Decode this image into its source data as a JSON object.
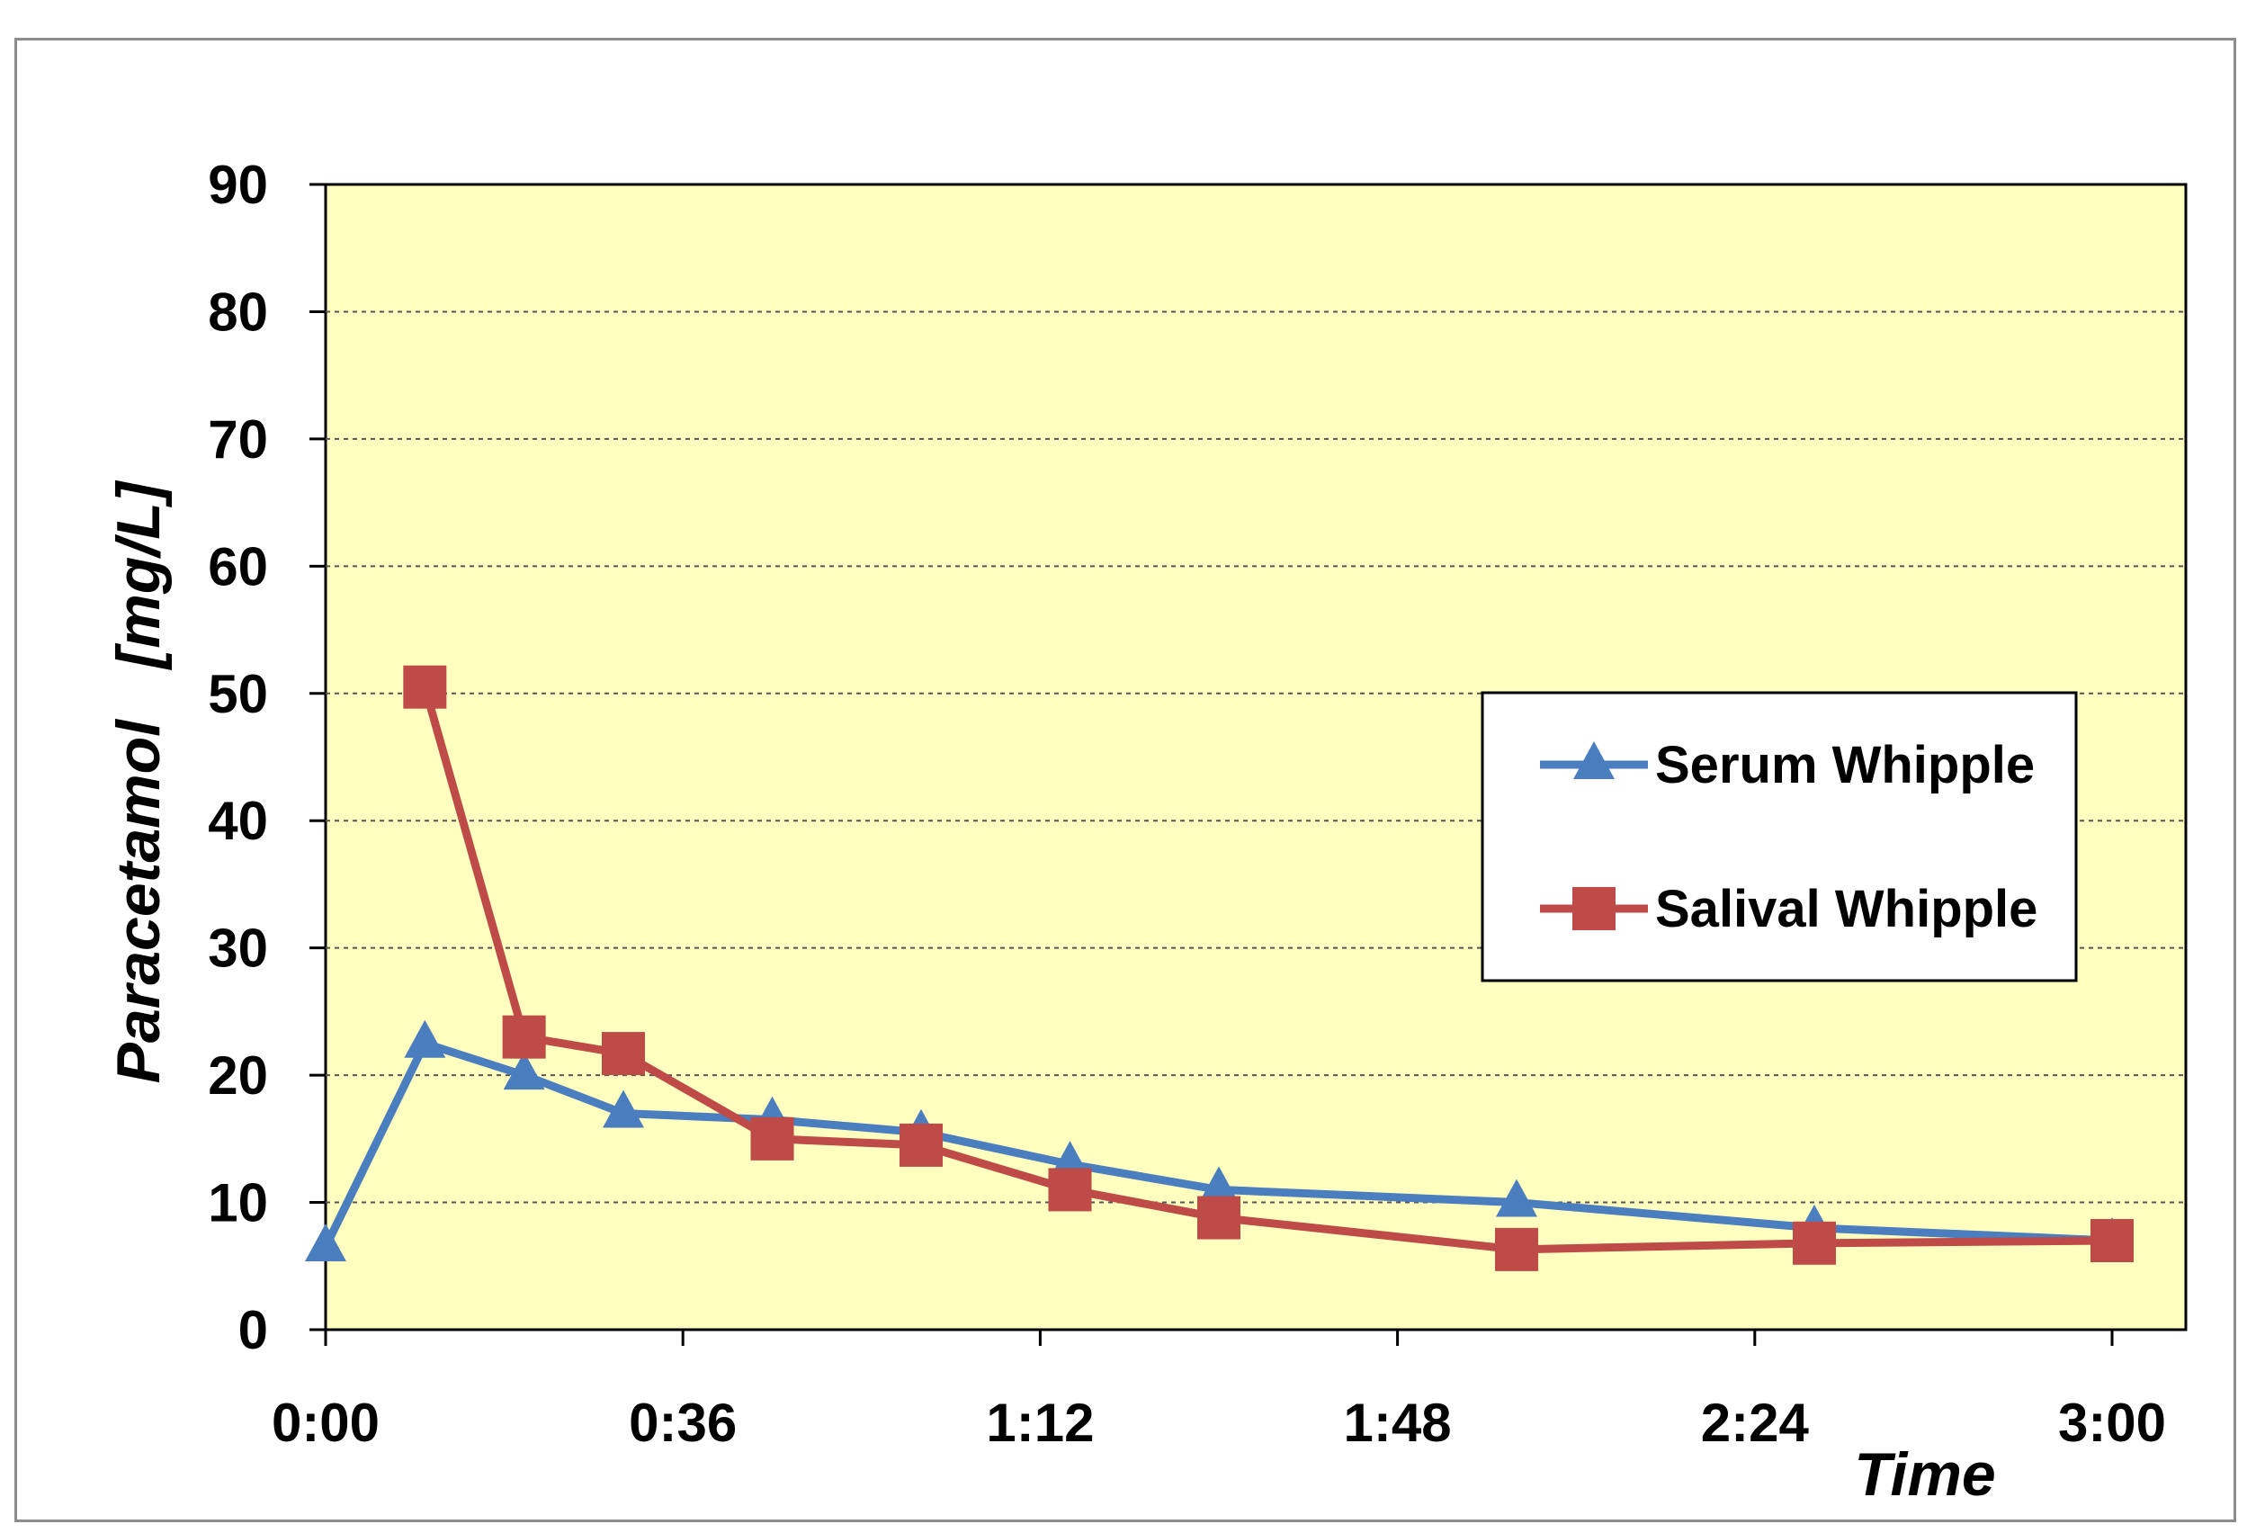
{
  "chart_data": {
    "type": "line",
    "title": "",
    "xlabel": "Time",
    "ylabel": "Paracetamol   [mg/L]",
    "x_tick_labels": [
      "0:00",
      "0:36",
      "1:12",
      "1:48",
      "2:24",
      "3:00"
    ],
    "x_tick_minutes": [
      0,
      36,
      72,
      108,
      144,
      180
    ],
    "xlim_minutes": [
      0,
      180
    ],
    "y_ticks": [
      0,
      10,
      20,
      30,
      40,
      50,
      60,
      70,
      80,
      90
    ],
    "ylim": [
      0,
      90
    ],
    "grid": "horizontal dashed",
    "legend_position": "right",
    "plot_background": "#ffffc0",
    "series": [
      {
        "name": "Serum Whipple",
        "color": "#4a7ebf",
        "marker": "triangle",
        "x_minutes": [
          0,
          10,
          20,
          30,
          45,
          60,
          75,
          90,
          120,
          150,
          180
        ],
        "values": [
          6.5,
          22.5,
          20,
          17,
          16.5,
          15.5,
          13,
          11,
          10,
          8,
          7
        ]
      },
      {
        "name": "Salival Whipple",
        "color": "#be4b48",
        "marker": "square",
        "x_minutes": [
          10,
          20,
          30,
          45,
          60,
          75,
          90,
          120,
          150,
          180
        ],
        "values": [
          50.5,
          23,
          21.7,
          15,
          14.5,
          11,
          8.8,
          6.3,
          6.8,
          7
        ]
      }
    ]
  }
}
